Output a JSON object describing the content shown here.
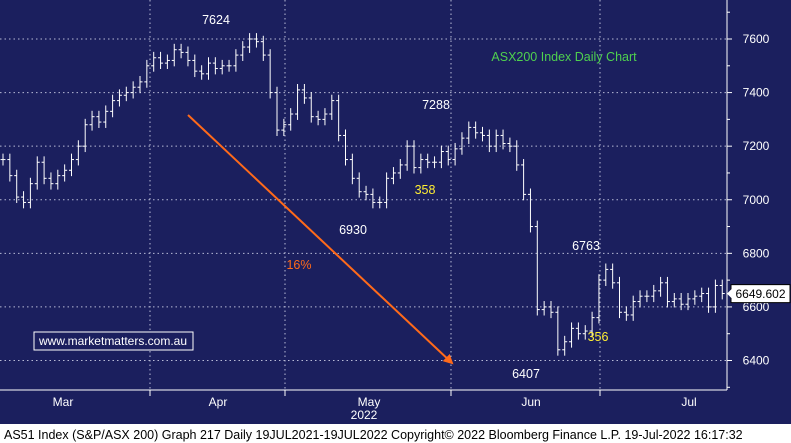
{
  "colors": {
    "plot_bg": "#1b1f5e",
    "grid": "#b8bbd6",
    "price": "#ffffff",
    "title": "#4fd04f",
    "arrow": "#ff6a1a",
    "pct_label": "#ff6a1a",
    "range_label": "#ffee33",
    "point_label": "#ffffff",
    "footer_bg": "#ffffff",
    "footer_text": "#000000",
    "watermark_border": "#ffffff",
    "watermark_text": "#ffffff"
  },
  "footer": {
    "text": "AS51 Index (S&P/ASX 200) Graph 217  Daily 19JUL2021-19JUL2022  Copyright© 2022 Bloomberg Finance L.P.  19-Jul-2022 16:17:32"
  },
  "chart_data": {
    "type": "line",
    "style": "ohlc-bar",
    "title": "ASX200 Index Daily Chart",
    "watermark": "www.marketmatters.com.au",
    "ylim": [
      6290,
      7710
    ],
    "yticks": [
      6400,
      6600,
      6800,
      7000,
      7200,
      7400,
      7600
    ],
    "xticks": [
      "Mar",
      "Apr",
      "May",
      "Jun",
      "Jul"
    ],
    "year_label": "2022",
    "grid": true,
    "last_price": 6649.602,
    "last_price_label": "6649.602",
    "series": [
      {
        "values": [
          7150,
          7090,
          7010,
          6990,
          7060,
          7140,
          7080,
          7060,
          7090,
          7110,
          7150,
          7200,
          7280,
          7310,
          7290,
          7330,
          7370,
          7390,
          7400,
          7420,
          7440,
          7500,
          7530,
          7510,
          7520,
          7560,
          7550,
          7520,
          7480,
          7470,
          7510,
          7490,
          7500,
          7500,
          7540,
          7570,
          7600,
          7590,
          7540,
          7400,
          7260,
          7280,
          7320,
          7410,
          7380,
          7310,
          7300,
          7320,
          7370,
          7240,
          7150,
          7080,
          7030,
          7020,
          6990,
          6990,
          7080,
          7100,
          7130,
          7200,
          7120,
          7150,
          7140,
          7140,
          7180,
          7150,
          7190,
          7230,
          7270,
          7250,
          7240,
          7200,
          7240,
          7210,
          7200,
          7130,
          7020,
          6900,
          6590,
          6600,
          6580,
          6440,
          6470,
          6520,
          6500,
          6510,
          6560,
          6700,
          6740,
          6690,
          6580,
          6570,
          6620,
          6640,
          6640,
          6660,
          6690,
          6620,
          6630,
          6610,
          6630,
          6640,
          6650,
          6600,
          6680,
          6650
        ]
      }
    ],
    "annotations": [
      {
        "text": "7624",
        "value": 7624
      },
      {
        "text": "6930",
        "value": 6930
      },
      {
        "text": "7288",
        "value": 7288
      },
      {
        "text": "6407",
        "value": 6407
      },
      {
        "text": "6763",
        "value": 6763
      },
      {
        "text": "358"
      },
      {
        "text": "356"
      },
      {
        "text": "16%"
      }
    ]
  }
}
